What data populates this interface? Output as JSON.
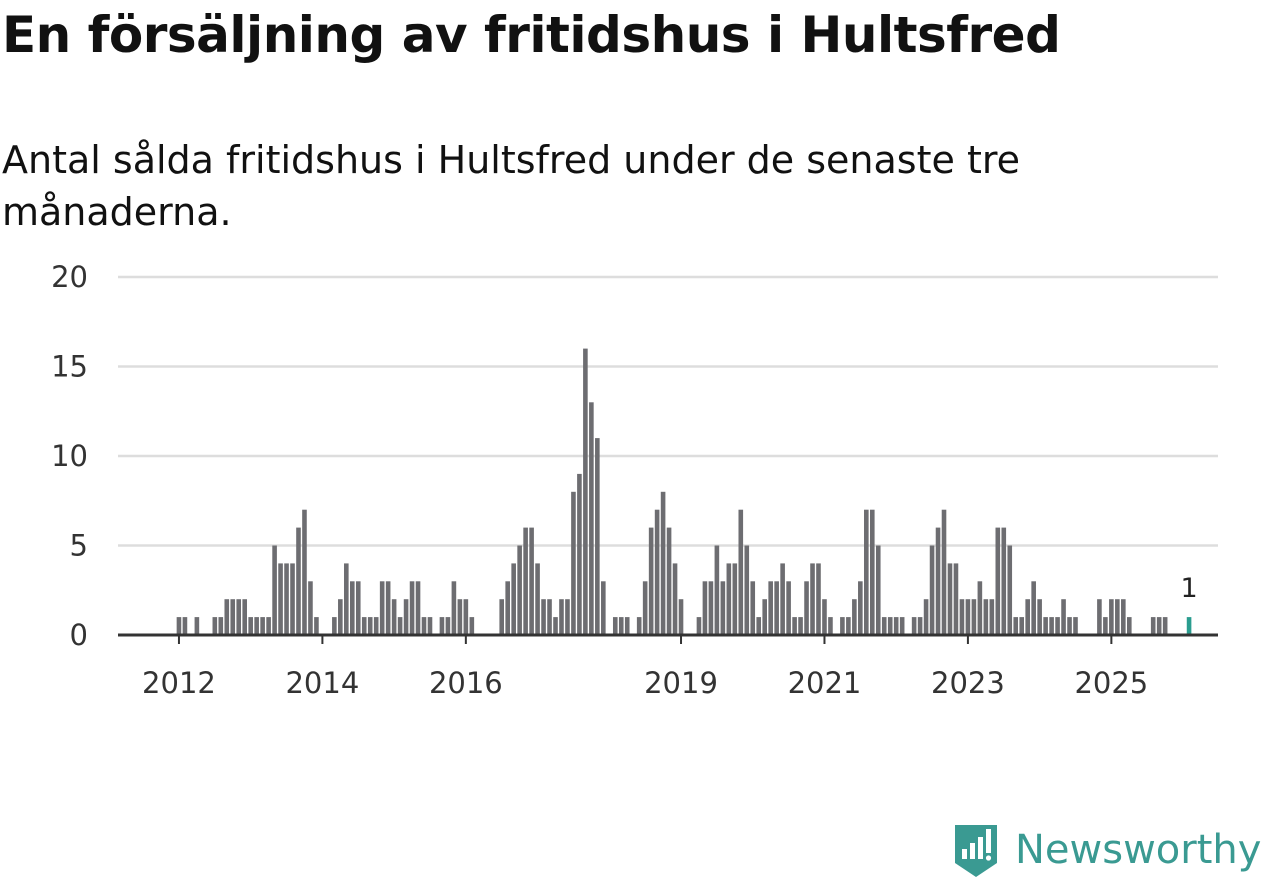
{
  "title": "En försäljning av fritidshus i Hultsfred",
  "subtitle": "Antal sålda fritidshus i Hultsfred under de senaste tre månaderna.",
  "brand": {
    "name": "Newsworthy",
    "color": "#3a9a92",
    "icon": "newsworthy-logo-icon"
  },
  "colors": {
    "bar": "#6d6d71",
    "highlight": "#2a9d8f",
    "grid": "#dddddd",
    "axis": "#333333"
  },
  "chart_data": {
    "type": "bar",
    "title": "En försäljning av fritidshus i Hultsfred",
    "xlabel": "",
    "ylabel": "",
    "ylim": [
      0,
      20
    ],
    "yticks": [
      0,
      5,
      10,
      15,
      20
    ],
    "x_start": {
      "year": 2011,
      "month": 11
    },
    "xticks": [
      {
        "label": "2012",
        "year": 2012
      },
      {
        "label": "2014",
        "year": 2014
      },
      {
        "label": "2016",
        "year": 2016
      },
      {
        "label": "2019",
        "year": 2019
      },
      {
        "label": "2021",
        "year": 2021
      },
      {
        "label": "2023",
        "year": 2023
      },
      {
        "label": "2025",
        "year": 2025
      }
    ],
    "values": [
      0,
      0,
      1,
      1,
      0,
      1,
      0,
      0,
      1,
      1,
      2,
      2,
      2,
      2,
      1,
      1,
      1,
      1,
      5,
      4,
      4,
      4,
      6,
      7,
      3,
      1,
      0,
      0,
      1,
      2,
      4,
      3,
      3,
      1,
      1,
      1,
      3,
      3,
      2,
      1,
      2,
      3,
      3,
      1,
      1,
      0,
      1,
      1,
      3,
      2,
      2,
      1,
      0,
      0,
      0,
      0,
      2,
      3,
      4,
      5,
      6,
      6,
      4,
      2,
      2,
      1,
      2,
      2,
      8,
      9,
      16,
      13,
      11,
      3,
      0,
      1,
      1,
      1,
      0,
      1,
      3,
      6,
      7,
      8,
      6,
      4,
      2,
      0,
      0,
      1,
      3,
      3,
      5,
      3,
      4,
      4,
      7,
      5,
      3,
      1,
      2,
      3,
      3,
      4,
      3,
      1,
      1,
      3,
      4,
      4,
      2,
      1,
      0,
      1,
      1,
      2,
      3,
      7,
      7,
      5,
      1,
      1,
      1,
      1,
      0,
      1,
      1,
      2,
      5,
      6,
      7,
      4,
      4,
      2,
      2,
      2,
      3,
      2,
      2,
      6,
      6,
      5,
      1,
      1,
      2,
      3,
      2,
      1,
      1,
      1,
      2,
      1,
      1,
      0,
      0,
      0,
      2,
      1,
      2,
      2,
      2,
      1,
      0,
      0,
      0,
      1,
      1,
      1,
      0,
      0,
      0,
      1
    ],
    "highlight_index": "last",
    "annotations": [
      {
        "label": "1",
        "target": "last"
      }
    ]
  }
}
